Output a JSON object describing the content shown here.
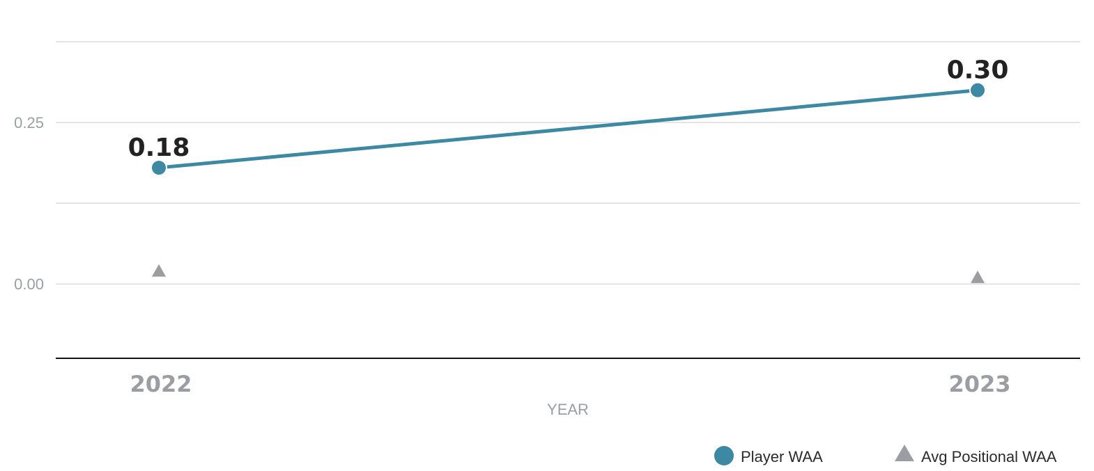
{
  "chart_data": {
    "type": "line",
    "title": "",
    "xlabel": "YEAR",
    "ylabel": "",
    "categories": [
      "2022",
      "2023"
    ],
    "y_ticks": [
      {
        "value": 0.0,
        "label": "0.00"
      },
      {
        "value": 0.25,
        "label": "0.25"
      }
    ],
    "ylim": [
      -0.115,
      0.375
    ],
    "grid": true,
    "legend_position": "bottom-right",
    "series": [
      {
        "name": "Player WAA",
        "marker": "circle",
        "color": "#3d88a3",
        "values": [
          0.18,
          0.3
        ],
        "labels": [
          "0.18",
          "0.30"
        ]
      },
      {
        "name": "Avg Positional WAA",
        "marker": "triangle",
        "color": "#9a9ea3",
        "values": [
          0.02,
          0.01
        ]
      }
    ]
  }
}
